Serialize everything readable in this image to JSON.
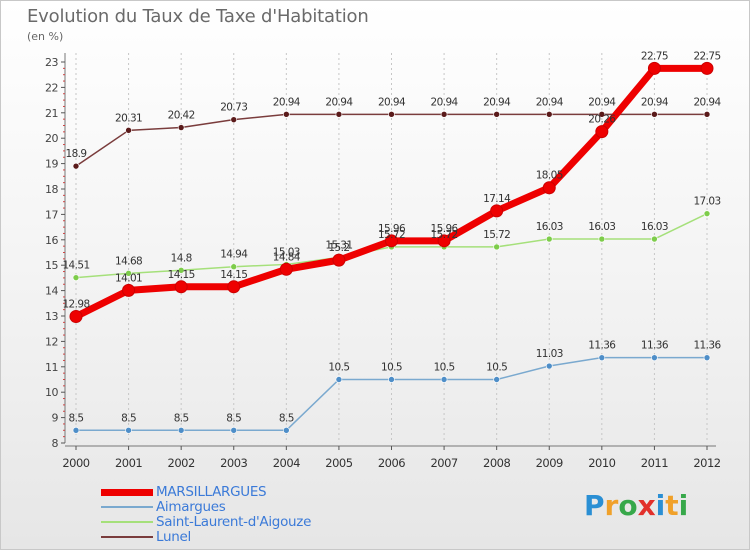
{
  "title": "Evolution du Taux de Taxe d'Habitation",
  "unit_label": "(en %)",
  "logo": {
    "text": "Proxiti",
    "letters": [
      "P",
      "r",
      "o",
      "x",
      "i",
      "t",
      "i"
    ],
    "colors": [
      "#2a8fd4",
      "#f0a12a",
      "#37a84a",
      "#e2302b",
      "#2a8fd4",
      "#f0a12a",
      "#37a84a"
    ]
  },
  "chart_data": {
    "type": "line",
    "x": [
      "2000",
      "2001",
      "2002",
      "2003",
      "2004",
      "2005",
      "2006",
      "2007",
      "2008",
      "2009",
      "2010",
      "2011",
      "2012"
    ],
    "ylim": [
      8,
      23
    ],
    "yticks": [
      8,
      9,
      10,
      11,
      12,
      13,
      14,
      15,
      16,
      17,
      18,
      19,
      20,
      21,
      22,
      23
    ],
    "grid": "vertical dashed",
    "legend_position": "bottom-left",
    "series": [
      {
        "name": "MARSILLARGUES",
        "color": "#ee0000",
        "marker_color": "#ee0000",
        "line_width": 7,
        "marker_size": 6,
        "values": [
          12.98,
          14.01,
          14.15,
          14.15,
          14.84,
          15.2,
          15.96,
          15.96,
          17.14,
          18.05,
          20.26,
          22.75,
          22.75
        ],
        "labels": [
          "12.98",
          "14.01",
          "14.15",
          "14.15",
          "14.84",
          "15.2",
          "15.96",
          "15.96",
          "17.14",
          "18.05",
          "20.26",
          "22.75",
          "22.75"
        ]
      },
      {
        "name": "Aimargues",
        "color": "#7aa9cf",
        "marker_color": "#4e8ec8",
        "line_width": 1.5,
        "marker_size": 3,
        "values": [
          8.5,
          8.5,
          8.5,
          8.5,
          8.5,
          10.5,
          10.5,
          10.5,
          10.5,
          11.03,
          11.36,
          11.36,
          11.36
        ],
        "labels": [
          "8.5",
          "8.5",
          "8.5",
          "8.5",
          "8.5",
          "10.5",
          "10.5",
          "10.5",
          "10.5",
          "11.03",
          "11.36",
          "11.36",
          "11.36"
        ]
      },
      {
        "name": "Saint-Laurent-d'Aigouze",
        "color": "#a5e07a",
        "marker_color": "#7dcc4a",
        "line_width": 1.5,
        "marker_size": 3,
        "values": [
          14.51,
          14.68,
          14.8,
          14.94,
          15.03,
          15.31,
          15.72,
          15.72,
          15.72,
          16.03,
          16.03,
          16.03,
          17.03
        ],
        "labels": [
          "14.51",
          "14.68",
          "14.8",
          "14.94",
          "15.03",
          "15.31",
          "15.72",
          "15.72",
          "15.72",
          "16.03",
          "16.03",
          "16.03",
          "17.03"
        ]
      },
      {
        "name": "Lunel",
        "color": "#7a3c3c",
        "marker_color": "#5a1a1a",
        "line_width": 1.5,
        "marker_size": 3,
        "values": [
          18.9,
          20.31,
          20.42,
          20.73,
          20.94,
          20.94,
          20.94,
          20.94,
          20.94,
          20.94,
          20.94,
          20.94,
          20.94
        ],
        "labels": [
          "18.9",
          "20.31",
          "20.42",
          "20.73",
          "20.94",
          "20.94",
          "20.94",
          "20.94",
          "20.94",
          "20.94",
          "20.94",
          "20.94",
          "20.94"
        ]
      }
    ]
  }
}
